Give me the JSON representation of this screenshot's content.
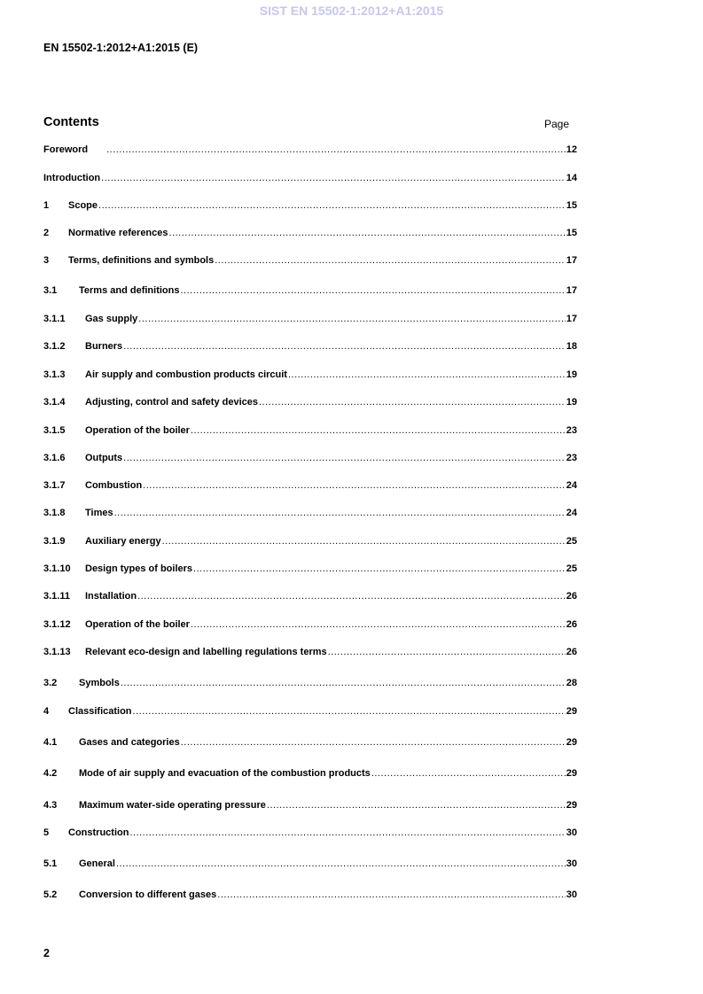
{
  "watermark": "SIST EN 15502-1:2012+A1:2015",
  "header": "EN 15502-1:2012+A1:2015 (E)",
  "contents_title": "Contents",
  "page_label": "Page",
  "entries": [
    {
      "num": "",
      "title": "Foreword",
      "page": "12"
    },
    {
      "num": "",
      "title": "Introduction",
      "page": "14"
    },
    {
      "num": "1",
      "title": "Scope",
      "page": "15"
    },
    {
      "num": "2",
      "title": "Normative references",
      "page": "15"
    },
    {
      "num": "3",
      "title": "Terms, definitions and symbols",
      "page": "17"
    },
    {
      "num": "3.1",
      "title": "Terms and definitions",
      "page": "17"
    },
    {
      "num": "3.1.1",
      "title": "Gas supply",
      "page": "17"
    },
    {
      "num": "3.1.2",
      "title": "Burners",
      "page": "18"
    },
    {
      "num": "3.1.3",
      "title": "Air supply and combustion products circuit",
      "page": "19"
    },
    {
      "num": "3.1.4",
      "title": "Adjusting, control and safety devices",
      "page": "19"
    },
    {
      "num": "3.1.5",
      "title": "Operation of the boiler",
      "page": "23"
    },
    {
      "num": "3.1.6",
      "title": "Outputs",
      "page": "23"
    },
    {
      "num": "3.1.7",
      "title": "Combustion",
      "page": "24"
    },
    {
      "num": "3.1.8",
      "title": "Times",
      "page": "24"
    },
    {
      "num": "3.1.9",
      "title": "Auxiliary energy",
      "page": "25"
    },
    {
      "num": "3.1.10",
      "title": "Design types of boilers",
      "page": "25"
    },
    {
      "num": "3.1.11",
      "title": "Installation",
      "page": "26"
    },
    {
      "num": "3.1.12",
      "title": "Operation of the boiler",
      "page": "26"
    },
    {
      "num": "3.1.13",
      "title": "Relevant eco-design and labelling regulations terms",
      "page": "26"
    },
    {
      "num": "3.2",
      "title": "Symbols",
      "page": "28"
    },
    {
      "num": "4",
      "title": "Classification",
      "page": "29"
    },
    {
      "num": "4.1",
      "title": "Gases and categories",
      "page": "29"
    },
    {
      "num": "4.2",
      "title": "Mode of air supply and evacuation of the combustion products",
      "page": "29"
    },
    {
      "num": "4.3",
      "title": "Maximum water-side operating pressure",
      "page": "29"
    },
    {
      "num": "5",
      "title": "Construction",
      "page": "30"
    },
    {
      "num": "5.1",
      "title": "General",
      "page": "30"
    },
    {
      "num": "5.2",
      "title": "Conversion to different gases",
      "page": "30"
    }
  ],
  "page_number": "2"
}
